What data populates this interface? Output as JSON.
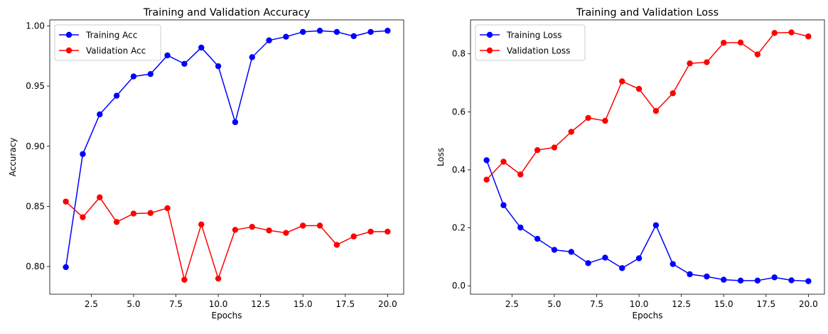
{
  "chart_data": [
    {
      "type": "line",
      "title": "Training and Validation Accuracy",
      "xlabel": "Epochs",
      "ylabel": "Accuracy",
      "xlim": [
        0.05,
        20.95
      ],
      "ylim": [
        0.777,
        1.005
      ],
      "xticks": [
        2.5,
        5.0,
        7.5,
        10.0,
        12.5,
        15.0,
        17.5,
        20.0
      ],
      "xtick_labels": [
        "2.5",
        "5.0",
        "7.5",
        "10.0",
        "12.5",
        "15.0",
        "17.5",
        "20.0"
      ],
      "yticks": [
        0.8,
        0.85,
        0.9,
        0.95,
        1.0
      ],
      "ytick_labels": [
        "0.80",
        "0.85",
        "0.90",
        "0.95",
        "1.00"
      ],
      "grid": false,
      "legend_position": "top-left",
      "x": [
        1,
        2,
        3,
        4,
        5,
        6,
        7,
        8,
        9,
        10,
        11,
        12,
        13,
        14,
        15,
        16,
        17,
        18,
        19,
        20
      ],
      "series": [
        {
          "name": "Training Acc",
          "color": "#0000ff",
          "values": [
            0.7995,
            0.8935,
            0.9265,
            0.942,
            0.958,
            0.96,
            0.9755,
            0.9685,
            0.982,
            0.9665,
            0.92,
            0.974,
            0.988,
            0.991,
            0.995,
            0.996,
            0.995,
            0.9915,
            0.995,
            0.996
          ]
        },
        {
          "name": "Validation Acc",
          "color": "#ff0000",
          "values": [
            0.854,
            0.841,
            0.8575,
            0.837,
            0.844,
            0.8445,
            0.8485,
            0.789,
            0.835,
            0.79,
            0.8305,
            0.833,
            0.83,
            0.828,
            0.834,
            0.834,
            0.818,
            0.825,
            0.829,
            0.829
          ]
        }
      ]
    },
    {
      "type": "line",
      "title": "Training and Validation Loss",
      "xlabel": "Epochs",
      "ylabel": "Loss",
      "xlim": [
        0.05,
        20.95
      ],
      "ylim": [
        -0.029,
        0.917
      ],
      "xticks": [
        2.5,
        5.0,
        7.5,
        10.0,
        12.5,
        15.0,
        17.5,
        20.0
      ],
      "xtick_labels": [
        "2.5",
        "5.0",
        "7.5",
        "10.0",
        "12.5",
        "15.0",
        "17.5",
        "20.0"
      ],
      "yticks": [
        0.0,
        0.2,
        0.4,
        0.6,
        0.8
      ],
      "ytick_labels": [
        "0.0",
        "0.2",
        "0.4",
        "0.6",
        "0.8"
      ],
      "grid": false,
      "legend_position": "top-left",
      "x": [
        1,
        2,
        3,
        4,
        5,
        6,
        7,
        8,
        9,
        10,
        11,
        12,
        13,
        14,
        15,
        16,
        17,
        18,
        19,
        20
      ],
      "series": [
        {
          "name": "Training Loss",
          "color": "#0000ff",
          "values": [
            0.433,
            0.278,
            0.201,
            0.162,
            0.124,
            0.117,
            0.078,
            0.097,
            0.061,
            0.095,
            0.209,
            0.075,
            0.04,
            0.032,
            0.021,
            0.018,
            0.018,
            0.029,
            0.019,
            0.016
          ]
        },
        {
          "name": "Validation Loss",
          "color": "#ff0000",
          "values": [
            0.366,
            0.428,
            0.384,
            0.468,
            0.477,
            0.531,
            0.579,
            0.569,
            0.705,
            0.679,
            0.603,
            0.664,
            0.767,
            0.771,
            0.838,
            0.839,
            0.798,
            0.872,
            0.874,
            0.86
          ]
        }
      ]
    }
  ]
}
